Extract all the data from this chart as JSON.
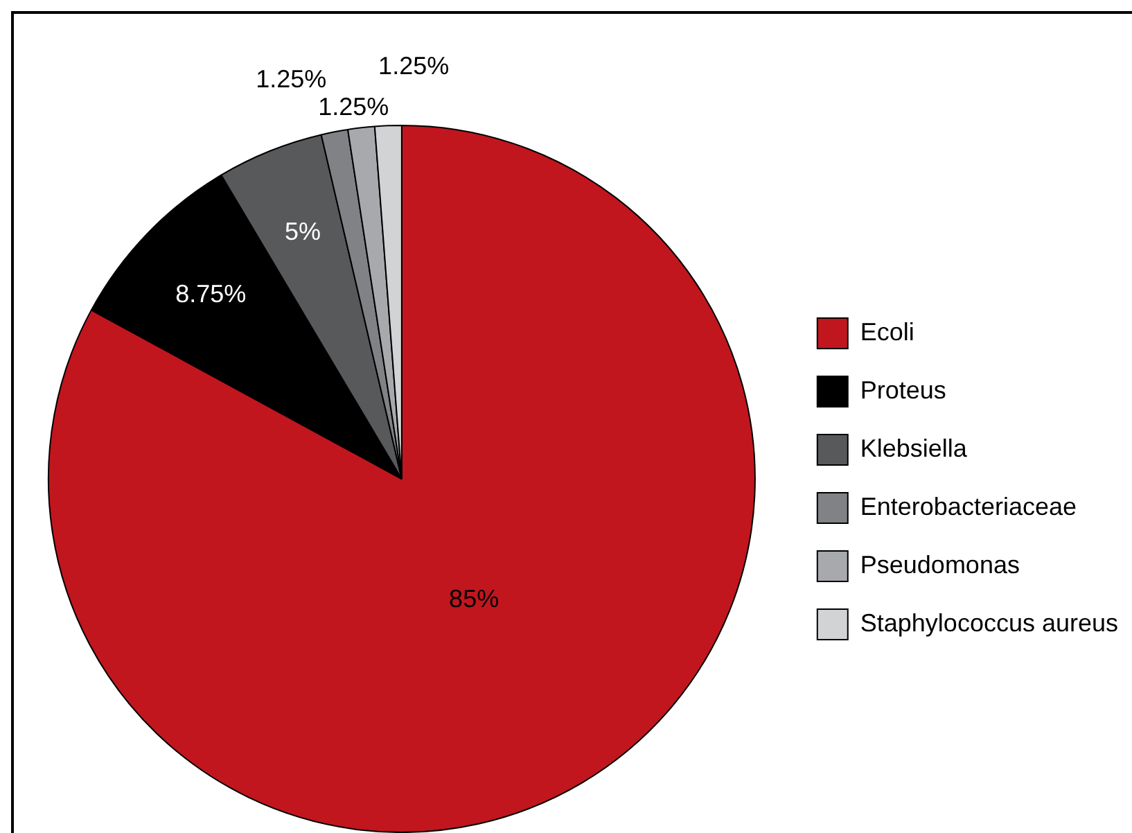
{
  "chart_data": {
    "type": "pie",
    "categories": [
      "Ecoli",
      "Proteus",
      "Klebsiella",
      "Enterobacteriaceae",
      "Pseudomonas",
      "Staphylococcus aureus"
    ],
    "values": [
      85,
      8.75,
      5,
      1.25,
      1.25,
      1.25
    ],
    "colors": [
      "#c1161e",
      "#000000",
      "#58595b",
      "#808285",
      "#a7a9ac",
      "#d1d3d4"
    ],
    "value_labels": [
      "85%",
      "8.75%",
      "5%",
      "1.25%",
      "1.25%",
      "1.25%"
    ],
    "legend": "right"
  }
}
